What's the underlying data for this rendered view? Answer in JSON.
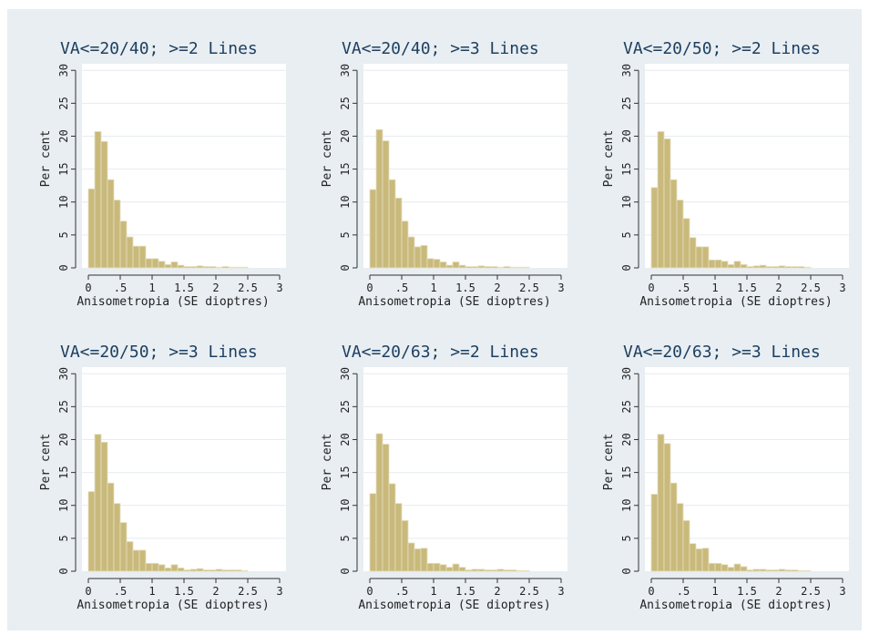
{
  "figure": {
    "background": "#e8eef1",
    "plot_background": "#ffffff",
    "bar_color": "#c9ba7c",
    "title_color": "#1d3f62"
  },
  "chart_data": [
    {
      "type": "bar",
      "title": "VA<=20/40; >=2 Lines",
      "xlabel": "Anisometropia (SE dioptres)",
      "ylabel": "Per cent",
      "xlim": [
        -0.1,
        3.1
      ],
      "ylim": [
        0,
        31
      ],
      "xticks": [
        "0",
        ".5",
        "1",
        "1.5",
        "2",
        "2.5",
        "3"
      ],
      "yticks": [
        "0",
        "5",
        "10",
        "15",
        "20",
        "25",
        "30"
      ],
      "bin_width": 0.1,
      "bins": [
        0.0,
        0.1,
        0.2,
        0.3,
        0.4,
        0.5,
        0.6,
        0.7,
        0.8,
        0.9,
        1.0,
        1.1,
        1.2,
        1.3,
        1.4,
        1.5,
        1.6,
        1.7,
        1.8,
        1.9,
        2.0,
        2.1,
        2.2,
        2.3,
        2.4,
        2.5,
        2.6,
        2.7,
        2.8,
        2.9
      ],
      "values": [
        12.0,
        20.7,
        19.2,
        13.4,
        10.3,
        7.1,
        4.7,
        3.3,
        3.3,
        1.4,
        1.4,
        1.0,
        0.5,
        0.9,
        0.4,
        0.2,
        0.2,
        0.3,
        0.2,
        0.2,
        0.1,
        0.2,
        0.1,
        0.1,
        0.1,
        0,
        0,
        0,
        0,
        0
      ],
      "grid": true
    },
    {
      "type": "bar",
      "title": "VA<=20/40; >=3 Lines",
      "xlabel": "Anisometropia (SE dioptres)",
      "ylabel": "Per cent",
      "xlim": [
        -0.1,
        3.1
      ],
      "ylim": [
        0,
        31
      ],
      "xticks": [
        "0",
        ".5",
        "1",
        "1.5",
        "2",
        "2.5",
        "3"
      ],
      "yticks": [
        "0",
        "5",
        "10",
        "15",
        "20",
        "25",
        "30"
      ],
      "bin_width": 0.1,
      "bins": [
        0.0,
        0.1,
        0.2,
        0.3,
        0.4,
        0.5,
        0.6,
        0.7,
        0.8,
        0.9,
        1.0,
        1.1,
        1.2,
        1.3,
        1.4,
        1.5,
        1.6,
        1.7,
        1.8,
        1.9,
        2.0,
        2.1,
        2.2,
        2.3,
        2.4,
        2.5,
        2.6,
        2.7,
        2.8,
        2.9
      ],
      "values": [
        11.9,
        21.0,
        19.3,
        13.4,
        10.6,
        7.1,
        4.7,
        3.2,
        3.4,
        1.4,
        1.3,
        0.9,
        0.4,
        0.9,
        0.4,
        0.2,
        0.2,
        0.3,
        0.2,
        0.2,
        0.1,
        0.2,
        0.1,
        0.1,
        0.1,
        0,
        0,
        0,
        0,
        0
      ],
      "grid": true
    },
    {
      "type": "bar",
      "title": "VA<=20/50; >=2 Lines",
      "xlabel": "Anisometropia (SE dioptres)",
      "ylabel": "Per cent",
      "xlim": [
        -0.1,
        3.1
      ],
      "ylim": [
        0,
        31
      ],
      "xticks": [
        "0",
        ".5",
        "1",
        "1.5",
        "2",
        "2.5",
        "3"
      ],
      "yticks": [
        "0",
        "5",
        "10",
        "15",
        "20",
        "25",
        "30"
      ],
      "bin_width": 0.1,
      "bins": [
        0.0,
        0.1,
        0.2,
        0.3,
        0.4,
        0.5,
        0.6,
        0.7,
        0.8,
        0.9,
        1.0,
        1.1,
        1.2,
        1.3,
        1.4,
        1.5,
        1.6,
        1.7,
        1.8,
        1.9,
        2.0,
        2.1,
        2.2,
        2.3,
        2.4,
        2.5,
        2.6,
        2.7,
        2.8,
        2.9
      ],
      "values": [
        12.2,
        20.7,
        19.6,
        13.4,
        10.3,
        7.5,
        4.6,
        3.2,
        3.2,
        1.2,
        1.2,
        1.0,
        0.5,
        1.0,
        0.5,
        0.2,
        0.3,
        0.4,
        0.2,
        0.2,
        0.3,
        0.2,
        0.2,
        0.2,
        0.1,
        0,
        0,
        0,
        0,
        0
      ],
      "grid": true
    },
    {
      "type": "bar",
      "title": "VA<=20/50; >=3 Lines",
      "xlabel": "Anisometropia (SE dioptres)",
      "ylabel": "Per cent",
      "xlim": [
        -0.1,
        3.1
      ],
      "ylim": [
        0,
        31
      ],
      "xticks": [
        "0",
        ".5",
        "1",
        "1.5",
        "2",
        "2.5",
        "3"
      ],
      "yticks": [
        "0",
        "5",
        "10",
        "15",
        "20",
        "25",
        "30"
      ],
      "bin_width": 0.1,
      "bins": [
        0.0,
        0.1,
        0.2,
        0.3,
        0.4,
        0.5,
        0.6,
        0.7,
        0.8,
        0.9,
        1.0,
        1.1,
        1.2,
        1.3,
        1.4,
        1.5,
        1.6,
        1.7,
        1.8,
        1.9,
        2.0,
        2.1,
        2.2,
        2.3,
        2.4,
        2.5,
        2.6,
        2.7,
        2.8,
        2.9
      ],
      "values": [
        12.1,
        20.8,
        19.6,
        13.4,
        10.3,
        7.4,
        4.5,
        3.2,
        3.2,
        1.2,
        1.2,
        1.0,
        0.5,
        1.0,
        0.5,
        0.2,
        0.3,
        0.4,
        0.2,
        0.2,
        0.3,
        0.2,
        0.2,
        0.2,
        0.1,
        0,
        0,
        0,
        0,
        0
      ],
      "grid": true
    },
    {
      "type": "bar",
      "title": "VA<=20/63; >=2 Lines",
      "xlabel": "Anisometropia (SE dioptres)",
      "ylabel": "Per cent",
      "xlim": [
        -0.1,
        3.1
      ],
      "ylim": [
        0,
        31
      ],
      "xticks": [
        "0",
        ".5",
        "1",
        "1.5",
        "2",
        "2.5",
        "3"
      ],
      "yticks": [
        "0",
        "5",
        "10",
        "15",
        "20",
        "25",
        "30"
      ],
      "bin_width": 0.1,
      "bins": [
        0.0,
        0.1,
        0.2,
        0.3,
        0.4,
        0.5,
        0.6,
        0.7,
        0.8,
        0.9,
        1.0,
        1.1,
        1.2,
        1.3,
        1.4,
        1.5,
        1.6,
        1.7,
        1.8,
        1.9,
        2.0,
        2.1,
        2.2,
        2.3,
        2.4,
        2.5,
        2.6,
        2.7,
        2.8,
        2.9
      ],
      "values": [
        11.8,
        20.9,
        19.3,
        13.3,
        10.3,
        7.7,
        4.3,
        3.4,
        3.5,
        1.2,
        1.2,
        1.0,
        0.6,
        1.1,
        0.6,
        0.2,
        0.3,
        0.3,
        0.2,
        0.2,
        0.3,
        0.2,
        0.2,
        0.1,
        0.1,
        0,
        0,
        0,
        0,
        0
      ],
      "grid": true
    },
    {
      "type": "bar",
      "title": "VA<=20/63; >=3 Lines",
      "xlabel": "Anisometropia (SE dioptres)",
      "ylabel": "Per cent",
      "xlim": [
        -0.1,
        3.1
      ],
      "ylim": [
        0,
        31
      ],
      "xticks": [
        "0",
        ".5",
        "1",
        "1.5",
        "2",
        "2.5",
        "3"
      ],
      "yticks": [
        "0",
        "5",
        "10",
        "15",
        "20",
        "25",
        "30"
      ],
      "bin_width": 0.1,
      "bins": [
        0.0,
        0.1,
        0.2,
        0.3,
        0.4,
        0.5,
        0.6,
        0.7,
        0.8,
        0.9,
        1.0,
        1.1,
        1.2,
        1.3,
        1.4,
        1.5,
        1.6,
        1.7,
        1.8,
        1.9,
        2.0,
        2.1,
        2.2,
        2.3,
        2.4,
        2.5,
        2.6,
        2.7,
        2.8,
        2.9
      ],
      "values": [
        11.7,
        20.8,
        19.4,
        13.4,
        10.3,
        7.7,
        4.2,
        3.4,
        3.5,
        1.2,
        1.2,
        1.0,
        0.6,
        1.1,
        0.7,
        0.2,
        0.3,
        0.3,
        0.2,
        0.2,
        0.3,
        0.2,
        0.2,
        0.1,
        0.1,
        0,
        0,
        0,
        0,
        0
      ],
      "grid": true
    }
  ]
}
